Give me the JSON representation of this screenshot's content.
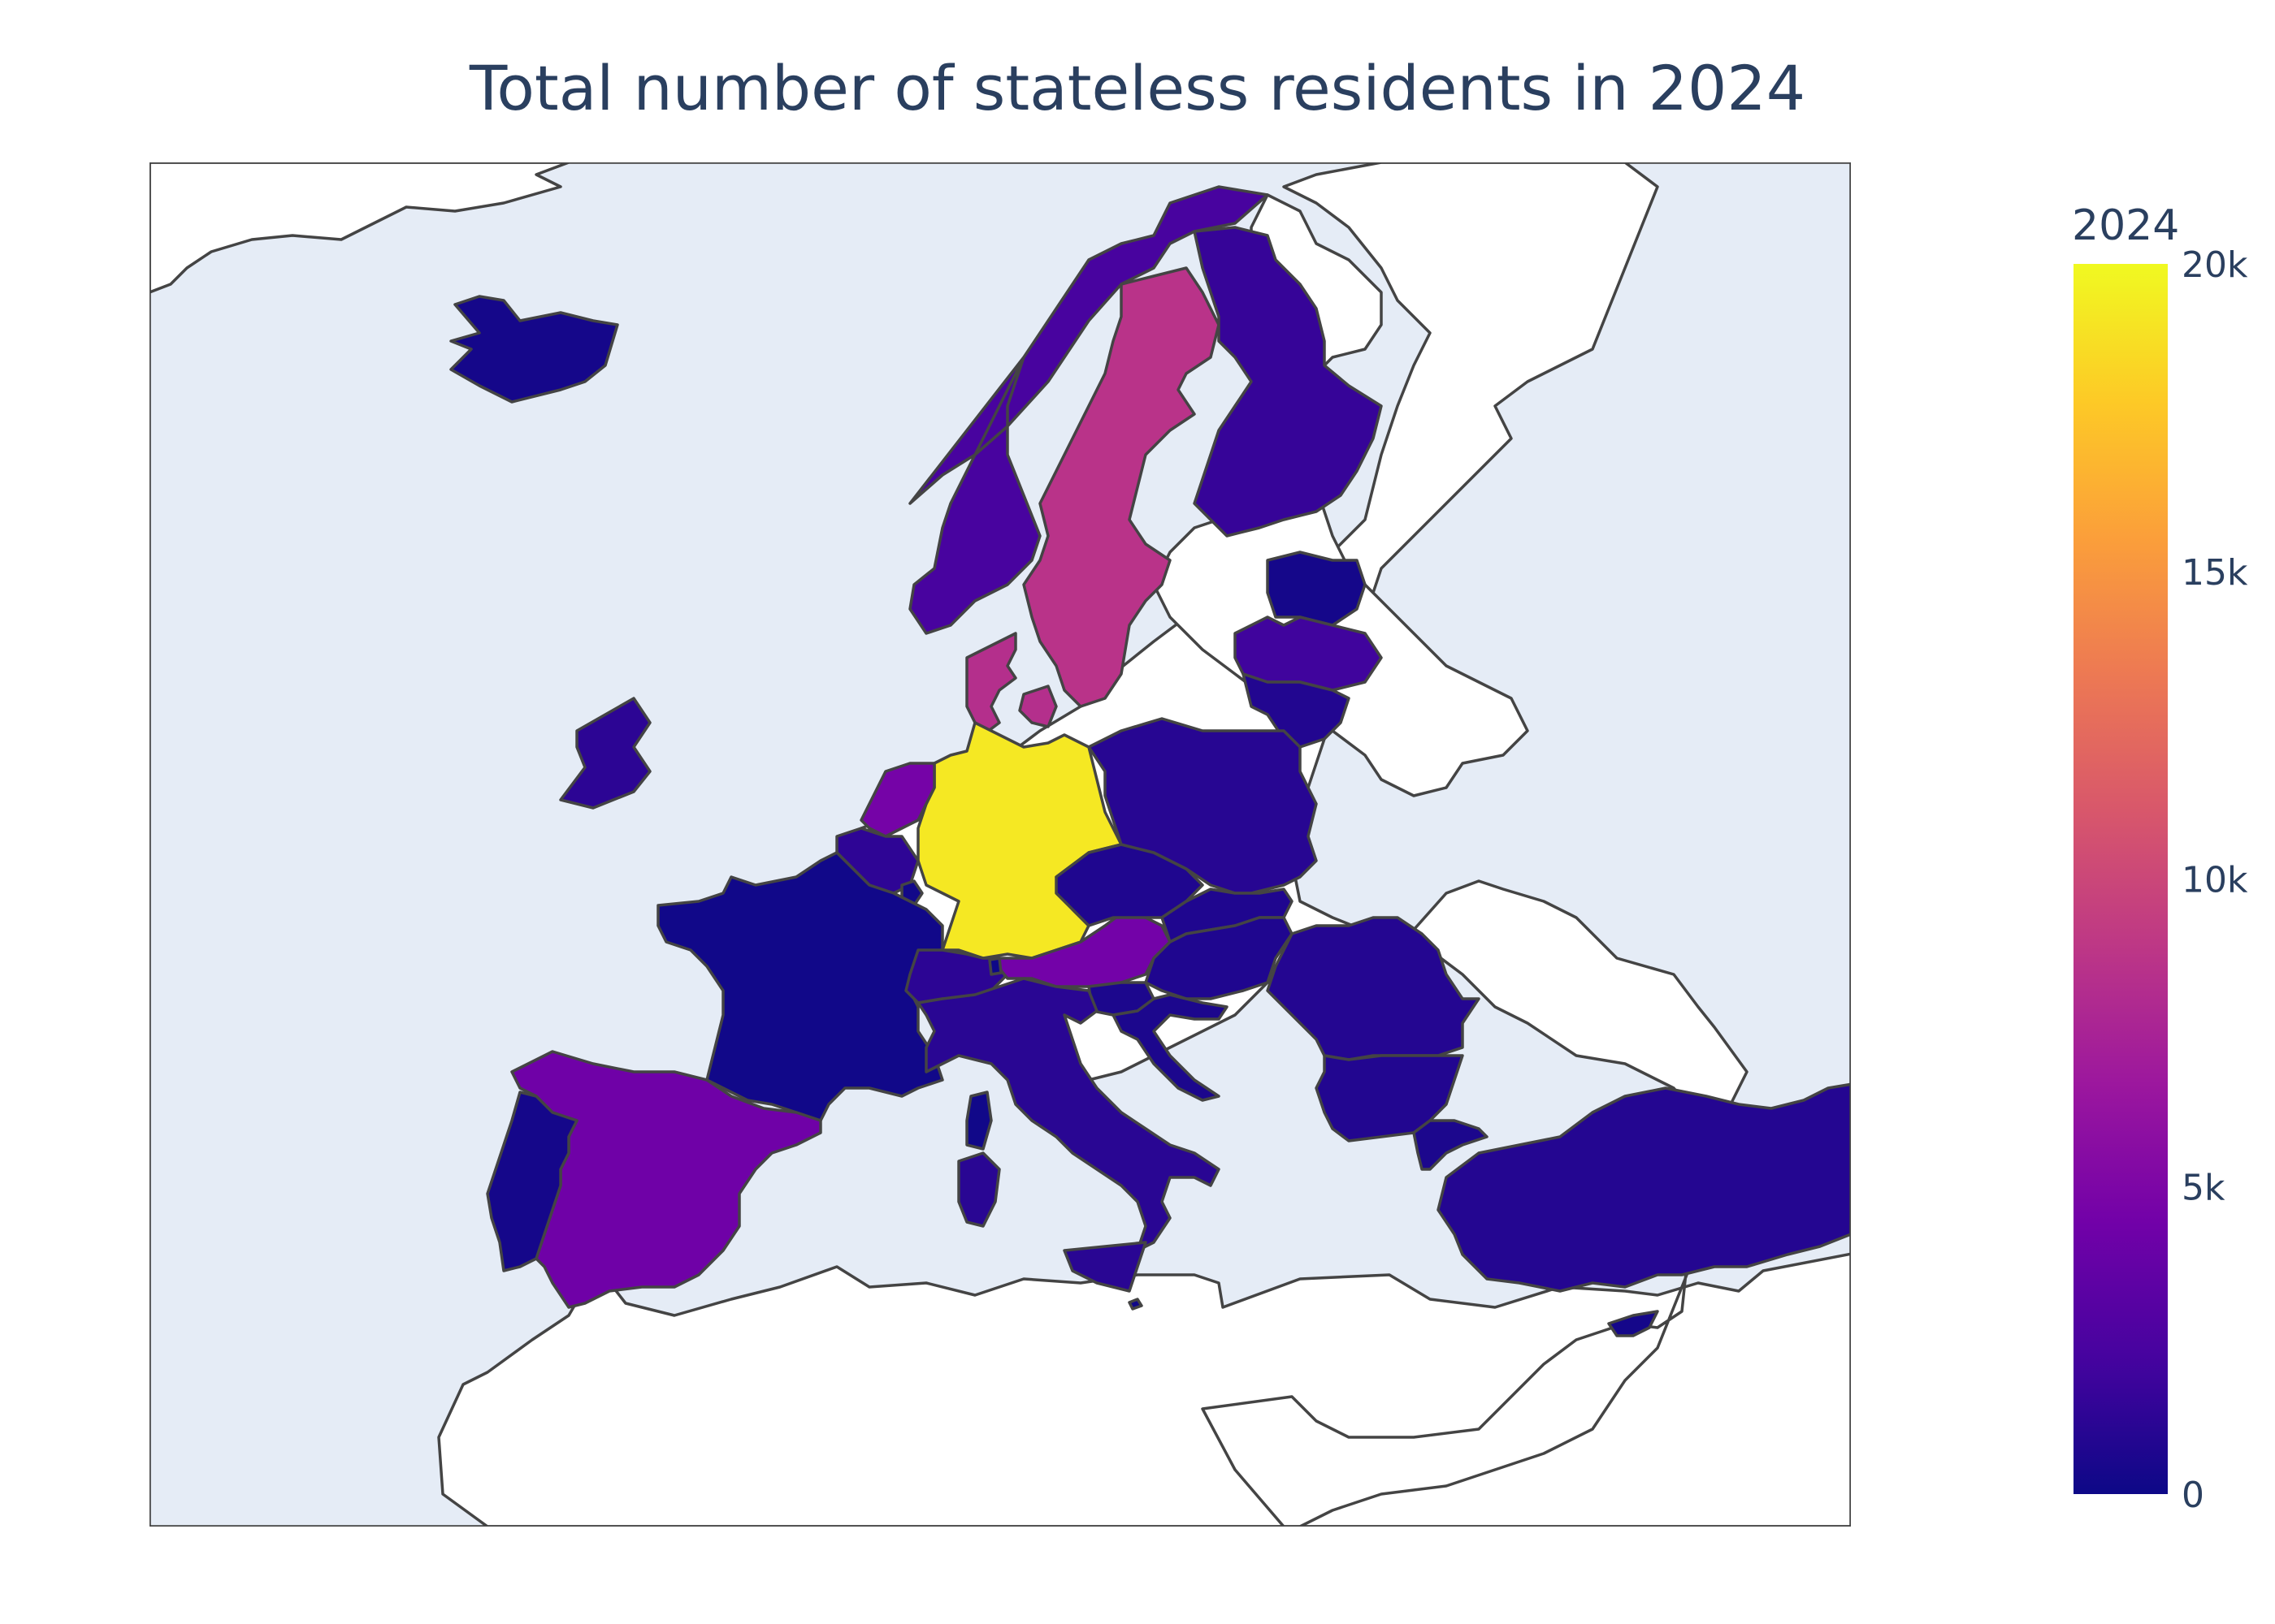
{
  "title": "Total number of stateless residents in 2024",
  "colors": {
    "ocean": "#e5ecf6",
    "land": "#ffffff",
    "border": "#444444",
    "text": "#2a3f5f"
  },
  "colorbar": {
    "title": "2024",
    "min": 0,
    "max": 20000,
    "ticks": [
      {
        "value": 20000,
        "label": "20k"
      },
      {
        "value": 15000,
        "label": "15k"
      },
      {
        "value": 10000,
        "label": "10k"
      },
      {
        "value": 5000,
        "label": "5k"
      },
      {
        "value": 0,
        "label": "0"
      }
    ],
    "colorscale": "Plasma",
    "stops": [
      "#0d0887",
      "#46039f",
      "#7201a8",
      "#9c179e",
      "#bd3786",
      "#d8576b",
      "#ed7953",
      "#fb9f3a",
      "#fdca26",
      "#f0f921"
    ]
  },
  "chart_data": {
    "type": "choropleth",
    "scope": "europe",
    "color_variable": "2024",
    "regions": [
      {
        "name": "Germany",
        "value": 19200
      },
      {
        "name": "Sweden",
        "value": 8600
      },
      {
        "name": "Denmark",
        "value": 8300
      },
      {
        "name": "Netherlands",
        "value": 4600
      },
      {
        "name": "Austria",
        "value": 4500
      },
      {
        "name": "Spain",
        "value": 4300
      },
      {
        "name": "Norway",
        "value": 2300
      },
      {
        "name": "Finland",
        "value": 1600
      },
      {
        "name": "Latvia",
        "value": 2000
      },
      {
        "name": "Ireland",
        "value": 1200
      },
      {
        "name": "Italy",
        "value": 1100
      },
      {
        "name": "Belgium",
        "value": 1300
      },
      {
        "name": "Switzerland",
        "value": 1200
      },
      {
        "name": "Poland",
        "value": 1000
      },
      {
        "name": "Turkey",
        "value": 900
      },
      {
        "name": "Romania",
        "value": 900
      },
      {
        "name": "Bulgaria",
        "value": 800
      },
      {
        "name": "Lithuania",
        "value": 800
      },
      {
        "name": "Hungary",
        "value": 700
      },
      {
        "name": "Czechia",
        "value": 700
      },
      {
        "name": "Slovakia",
        "value": 700
      },
      {
        "name": "Slovenia",
        "value": 600
      },
      {
        "name": "Croatia",
        "value": 600
      },
      {
        "name": "Greece",
        "value": 600
      },
      {
        "name": "France",
        "value": 150
      },
      {
        "name": "Portugal",
        "value": 300
      },
      {
        "name": "Iceland",
        "value": 300
      },
      {
        "name": "Estonia",
        "value": 300
      },
      {
        "name": "Luxembourg",
        "value": 200
      },
      {
        "name": "Cyprus",
        "value": 300
      },
      {
        "name": "Malta",
        "value": 100
      },
      {
        "name": "Liechtenstein",
        "value": 50
      }
    ]
  }
}
